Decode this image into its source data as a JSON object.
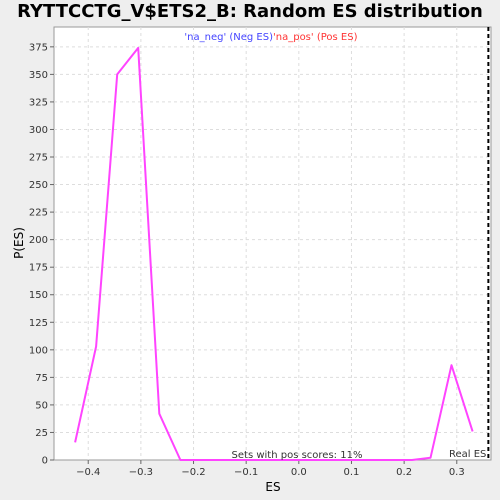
{
  "chart_data": {
    "type": "line",
    "title": "RYTTCCTG_V$ETS2_B: Random ES distribution",
    "xlabel": "ES",
    "ylabel": "P(ES)",
    "xlim": [
      -0.465,
      0.365
    ],
    "ylim": [
      0,
      393
    ],
    "x_ticks": [
      -0.4,
      -0.3,
      -0.2,
      -0.1,
      0.0,
      0.1,
      0.2,
      0.3
    ],
    "x_tick_labels": [
      "−0.4",
      "−0.3",
      "−0.2",
      "−0.1",
      "0.0",
      "0.1",
      "0.2",
      "0.3"
    ],
    "y_ticks": [
      0,
      25,
      50,
      75,
      100,
      125,
      150,
      175,
      200,
      225,
      250,
      275,
      300,
      325,
      350,
      375
    ],
    "grid": true,
    "series": [
      {
        "name": "",
        "color": "#ff44ff",
        "x": [
          -0.425,
          -0.385,
          -0.345,
          -0.305,
          -0.265,
          -0.225,
          -0.185,
          -0.145,
          -0.105,
          -0.065,
          -0.025,
          0.015,
          0.055,
          0.095,
          0.135,
          0.175,
          0.215,
          0.25,
          0.29,
          0.33
        ],
        "y": [
          16,
          103,
          350,
          374,
          42,
          0,
          0,
          0,
          0,
          0,
          0,
          0,
          0,
          0,
          0,
          0,
          0,
          2,
          86,
          26
        ]
      }
    ],
    "real_es": {
      "x": 0.36,
      "label": "Real ES"
    },
    "legend": [
      {
        "label": "'na_neg' (Neg ES)",
        "color": "#4444ff"
      },
      {
        "label": "'na_pos' (Pos ES)",
        "color": "#ff3333"
      }
    ],
    "legend_position": "top",
    "annotation": "Sets with pos scores: 11%"
  }
}
